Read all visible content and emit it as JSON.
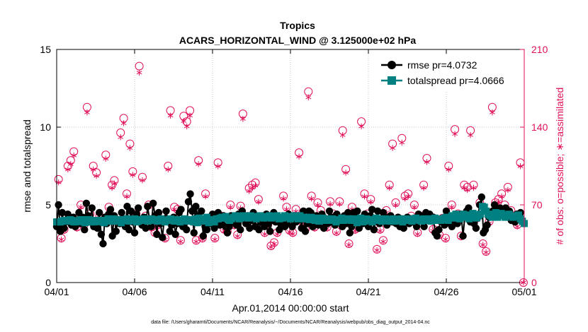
{
  "chart_data": {
    "type": "line",
    "title": "Tropics",
    "subtitle": "ACARS_HORIZONTAL_WIND @ 3.125000e+02 hPa",
    "xlabel": "Apr.01,2014 00:00:00 start",
    "ylabel_left": "rmse and totalspread",
    "ylabel_right": "# of obs: o=possible; ∗=assimilated",
    "footnote": "data file: /Users/gharamti/Documents/NCAR/Reanalysis/~/Documents/NCAR/Reanalysis/webpub/obs_diag_output_2014-04.nc",
    "xlim": [
      0,
      30
    ],
    "ylim_left": [
      0,
      15
    ],
    "ylim_right": [
      0,
      210
    ],
    "x_ticks": [
      0,
      5,
      10,
      15,
      20,
      25,
      30
    ],
    "x_tick_labels": [
      "04/01",
      "04/06",
      "04/11",
      "04/16",
      "04/21",
      "04/26",
      "05/01"
    ],
    "y_ticks_left": [
      0,
      5,
      10,
      15
    ],
    "y_tick_labels_left": [
      "0",
      "5",
      "10",
      "15"
    ],
    "y_ticks_right": [
      0,
      70,
      140,
      210
    ],
    "y_tick_labels_right": [
      "0",
      "70",
      "140",
      "210"
    ],
    "grid": true,
    "legend_position": "top-right",
    "colors": {
      "rmse": "#000000",
      "totalspread": "#008080",
      "obs": "#e0105a"
    },
    "series": [
      {
        "name": "rmse pr=4.0732",
        "axis": "left",
        "values": [
          3.6,
          5.0,
          3.3,
          4.5,
          3.5,
          3.9,
          4.4,
          4.0,
          3.7,
          4.2,
          3.6,
          3.9,
          4.5,
          3.8,
          4.2,
          3.4,
          5.1,
          4.3,
          3.9,
          4.8,
          3.6,
          4.0,
          3.5,
          4.5,
          3.1,
          2.5,
          4.2,
          3.8,
          4.4,
          4.7,
          3.0,
          4.3,
          3.3,
          4.0,
          3.8,
          4.5,
          4.1,
          3.6,
          4.9,
          3.4,
          4.6,
          3.9,
          3.2,
          4.4,
          4.8,
          4.0,
          3.7,
          4.2,
          3.5,
          4.9,
          4.1,
          3.6,
          5.1,
          4.3,
          3.1,
          4.5,
          3.8,
          2.9,
          4.1,
          4.6,
          3.9,
          3.3,
          3.7,
          4.2,
          3.1,
          3.8,
          4.5,
          4.7,
          3.6,
          4.0,
          3.4,
          5.2,
          5.7,
          4.6,
          3.2,
          4.9,
          4.3,
          3.9,
          4.6,
          3.0,
          3.6,
          3.4,
          4.2,
          3.8,
          4.4,
          3.5,
          3.9,
          4.5,
          3.7,
          4.0,
          4.3,
          3.6,
          3.2,
          3.6,
          4.3,
          3.9,
          4.1,
          3.7,
          4.4,
          3.4,
          4.6,
          4.1,
          3.8,
          4.3,
          3.5,
          4.0,
          4.5,
          3.6,
          4.2,
          3.4,
          3.9,
          4.2,
          3.6,
          4.4,
          3.8,
          3.3,
          4.0,
          4.5,
          3.9,
          4.1,
          3.4,
          3.7,
          4.2,
          3.6,
          3.8,
          4.4,
          4.1,
          3.6,
          4.3,
          3.9,
          4.0,
          4.3,
          3.5,
          4.6,
          3.3,
          3.8,
          4.6,
          4.5,
          3.6,
          4.0,
          4.3,
          3.7,
          4.2,
          4.4,
          3.5,
          4.0,
          3.8,
          4.6,
          3.9,
          4.2,
          3.7,
          4.4,
          3.9,
          4.1,
          3.6,
          4.3,
          3.8,
          4.5,
          3.2,
          3.6,
          4.5,
          3.9,
          4.6,
          3.5,
          4.1,
          3.8,
          4.4,
          3.9,
          3.6,
          4.3,
          4.7,
          3.4,
          4.0,
          4.6,
          3.8,
          4.1,
          4.5,
          4.2,
          3.7,
          4.1,
          4.3,
          3.9,
          4.1,
          3.8,
          4.2,
          3.6,
          4.1,
          3.5,
          3.9,
          4.2,
          3.8,
          4.1,
          3.9,
          4.1,
          3.6,
          4.4,
          4.3,
          4.1,
          3.6,
          4.5,
          4.1,
          4.4,
          4.0,
          4.2,
          3.2,
          3.0,
          3.4,
          4.1,
          3.9,
          3.7,
          4.6,
          4.1,
          3.8,
          3.6,
          4.0,
          4.4,
          3.8,
          4.1,
          4.4,
          3.0,
          4.3,
          4.6,
          4.8,
          3.9,
          4.4,
          3.8,
          3.5,
          4.2,
          5.0,
          5.5,
          3.2,
          3.4,
          3.7,
          4.2,
          4.5,
          4.6,
          5.0,
          4.7,
          4.4,
          4.8,
          4.5,
          4.6,
          4.8,
          4.4,
          4.6,
          4.0,
          4.3,
          3.9,
          4.4,
          4.2,
          4.5,
          3.9,
          3.8
        ]
      },
      {
        "name": "totalspread pr=4.0666",
        "axis": "left",
        "values": [
          3.9,
          3.9,
          3.9,
          3.95,
          4.0,
          4.0,
          3.95,
          4.05,
          4.0,
          3.9,
          3.9,
          3.95,
          4.0,
          4.05,
          3.9,
          3.85,
          4.05,
          4.05,
          3.9,
          4.0,
          3.9,
          4.0,
          3.95,
          4.0,
          3.9,
          3.85,
          4.0,
          4.1,
          3.95,
          4.05,
          4.1,
          3.95,
          4.0,
          4.05,
          3.85,
          4.0,
          4.05,
          4.1,
          3.95,
          4.0,
          4.05,
          4.1,
          3.9,
          3.95,
          4.05,
          4.0,
          4.1,
          4.05,
          3.95,
          4.0,
          4.1,
          4.05,
          4.0,
          3.95,
          4.05,
          4.1,
          4.0,
          3.9,
          4.0,
          4.05,
          4.1,
          4.0,
          3.95,
          4.05,
          4.0,
          3.9,
          4.0,
          4.1,
          4.05,
          3.95,
          4.0,
          4.05,
          3.9,
          4.1,
          3.85,
          4.15,
          4.05,
          3.95,
          4.1,
          4.2,
          3.85,
          3.95,
          4.05,
          3.9,
          4.1,
          4.1,
          4.15,
          4.2,
          4.15,
          4.25,
          4.1,
          4.0,
          4.1,
          4.2,
          4.3,
          4.25,
          4.1,
          4.15,
          4.3,
          4.2,
          4.25,
          4.15,
          4.3,
          4.25,
          4.2,
          4.1,
          4.25,
          4.3,
          4.2,
          4.15,
          4.25,
          4.2,
          4.3,
          4.15,
          4.2,
          4.25,
          4.3,
          4.1,
          4.2,
          4.15,
          4.3,
          4.25,
          4.2,
          4.1,
          4.25,
          4.3,
          4.2,
          4.1,
          4.3,
          4.2,
          4.1,
          4.2,
          4.1,
          4.05,
          4.2,
          4.1,
          4.0,
          4.15,
          3.95,
          4.05,
          4.15,
          4.0,
          4.1,
          4.05,
          4.0,
          4.1,
          4.05,
          3.9,
          4.0,
          4.05,
          4.15,
          4.0,
          4.05,
          4.1,
          4.1,
          4.0,
          4.0,
          4.1,
          3.85,
          4.0,
          4.15,
          3.9,
          3.95,
          4.1,
          4.0,
          4.05,
          3.9,
          4.05,
          4.15,
          4.0,
          4.1,
          3.95,
          4.05,
          4.1,
          4.0,
          3.95,
          4.05,
          4.1,
          3.95,
          4.0,
          4.05,
          4.1,
          3.9,
          4.0,
          4.1,
          4.0,
          4.05,
          3.95,
          4.1,
          4.15,
          4.05,
          4.0,
          3.95,
          4.1,
          4.05,
          4.0,
          4.1,
          3.95,
          4.05,
          4.15,
          4.0,
          4.1,
          4.0,
          4.05,
          4.15,
          4.2,
          4.0,
          4.2,
          4.3,
          4.15,
          4.4,
          4.3,
          4.1,
          4.25,
          4.4,
          4.2,
          4.35,
          4.1,
          4.2,
          4.45,
          4.35,
          4.15,
          4.3,
          4.4,
          4.9,
          4.85,
          4.6,
          4.4,
          4.3,
          4.2,
          4.4,
          4.5,
          4.2,
          4.3,
          4.45,
          4.35,
          4.2,
          4.3,
          4.4,
          4.3,
          4.2,
          4.3,
          4.25,
          4.35,
          4.1,
          3.95,
          3.8
        ]
      }
    ],
    "obs_possible": [
      [
        0.12,
        93
      ],
      [
        0.3,
        40
      ],
      [
        0.48,
        48
      ],
      [
        0.72,
        105
      ],
      [
        0.9,
        110
      ],
      [
        1.1,
        118
      ],
      [
        1.3,
        50
      ],
      [
        1.55,
        70
      ],
      [
        1.75,
        52
      ],
      [
        1.95,
        158
      ],
      [
        2.15,
        62
      ],
      [
        2.35,
        105
      ],
      [
        2.55,
        99
      ],
      [
        2.75,
        60
      ],
      [
        2.95,
        55
      ],
      [
        3.15,
        115
      ],
      [
        3.35,
        68
      ],
      [
        3.55,
        88
      ],
      [
        3.7,
        92
      ],
      [
        3.9,
        56
      ],
      [
        4.1,
        135
      ],
      [
        4.3,
        148
      ],
      [
        4.5,
        80
      ],
      [
        4.7,
        125
      ],
      [
        4.88,
        100
      ],
      [
        5.1,
        62
      ],
      [
        5.3,
        195
      ],
      [
        5.5,
        95
      ],
      [
        5.7,
        60
      ],
      [
        5.9,
        70
      ],
      [
        6.1,
        50
      ],
      [
        6.3,
        45
      ],
      [
        6.5,
        52
      ],
      [
        6.75,
        60
      ],
      [
        6.95,
        40
      ],
      [
        7.15,
        105
      ],
      [
        7.3,
        155
      ],
      [
        7.55,
        68
      ],
      [
        7.75,
        66
      ],
      [
        7.95,
        38
      ],
      [
        8.15,
        150
      ],
      [
        8.35,
        145
      ],
      [
        8.55,
        155
      ],
      [
        8.75,
        55
      ],
      [
        8.95,
        38
      ],
      [
        9.1,
        110
      ],
      [
        9.35,
        40
      ],
      [
        9.55,
        80
      ],
      [
        9.75,
        58
      ],
      [
        9.95,
        55
      ],
      [
        10.15,
        40
      ],
      [
        10.35,
        108
      ],
      [
        10.55,
        60
      ],
      [
        10.75,
        48
      ],
      [
        10.95,
        46
      ],
      [
        11.15,
        70
      ],
      [
        11.4,
        52
      ],
      [
        11.6,
        43
      ],
      [
        11.8,
        69
      ],
      [
        11.95,
        152
      ],
      [
        12.15,
        58
      ],
      [
        12.35,
        85
      ],
      [
        12.55,
        88
      ],
      [
        12.75,
        90
      ],
      [
        12.95,
        75
      ],
      [
        13.15,
        55
      ],
      [
        13.35,
        45
      ],
      [
        13.55,
        52
      ],
      [
        13.75,
        33
      ],
      [
        13.95,
        36
      ],
      [
        14.15,
        45
      ],
      [
        14.35,
        55
      ],
      [
        14.55,
        78
      ],
      [
        14.75,
        68
      ],
      [
        14.95,
        47
      ],
      [
        15.15,
        45
      ],
      [
        15.35,
        66
      ],
      [
        15.55,
        117
      ],
      [
        15.75,
        55
      ],
      [
        15.95,
        48
      ],
      [
        16.15,
        172
      ],
      [
        16.35,
        78
      ],
      [
        16.55,
        50
      ],
      [
        16.75,
        72
      ],
      [
        16.95,
        65
      ],
      [
        17.15,
        58
      ],
      [
        17.35,
        50
      ],
      [
        17.55,
        73
      ],
      [
        17.75,
        62
      ],
      [
        17.95,
        46
      ],
      [
        18.15,
        73
      ],
      [
        18.35,
        137
      ],
      [
        18.55,
        102
      ],
      [
        18.75,
        35
      ],
      [
        18.95,
        68
      ],
      [
        19.15,
        48
      ],
      [
        19.35,
        57
      ],
      [
        19.55,
        145
      ],
      [
        19.75,
        80
      ],
      [
        19.95,
        62
      ],
      [
        20.15,
        75
      ],
      [
        20.35,
        55
      ],
      [
        20.55,
        30
      ],
      [
        20.75,
        48
      ],
      [
        20.95,
        38
      ],
      [
        21.15,
        65
      ],
      [
        21.35,
        88
      ],
      [
        21.55,
        125
      ],
      [
        21.75,
        72
      ],
      [
        21.95,
        55
      ],
      [
        22.15,
        130
      ],
      [
        22.35,
        78
      ],
      [
        22.55,
        80
      ],
      [
        22.75,
        60
      ],
      [
        22.95,
        70
      ],
      [
        23.15,
        45
      ],
      [
        23.35,
        60
      ],
      [
        23.55,
        88
      ],
      [
        23.75,
        112
      ],
      [
        23.95,
        60
      ],
      [
        24.15,
        48
      ],
      [
        24.35,
        50
      ],
      [
        24.55,
        43
      ],
      [
        24.75,
        58
      ],
      [
        24.95,
        40
      ],
      [
        25.15,
        105
      ],
      [
        25.35,
        70
      ],
      [
        25.55,
        138
      ],
      [
        25.75,
        62
      ],
      [
        25.95,
        42
      ],
      [
        26.15,
        88
      ],
      [
        26.35,
        86
      ],
      [
        26.55,
        137
      ],
      [
        26.75,
        88
      ],
      [
        26.95,
        58
      ],
      [
        27.15,
        72
      ],
      [
        27.35,
        35
      ],
      [
        27.55,
        28
      ],
      [
        27.75,
        55
      ],
      [
        27.95,
        158
      ],
      [
        28.15,
        72
      ],
      [
        28.35,
        75
      ],
      [
        28.55,
        80
      ],
      [
        28.75,
        70
      ],
      [
        28.95,
        86
      ],
      [
        29.15,
        65
      ],
      [
        29.35,
        60
      ],
      [
        29.55,
        52
      ],
      [
        29.75,
        108
      ],
      [
        29.95,
        0
      ]
    ]
  },
  "ui": {
    "legend_rmse_label": "rmse pr=4.0732",
    "legend_totalspread_label": "totalspread pr=4.0666"
  }
}
